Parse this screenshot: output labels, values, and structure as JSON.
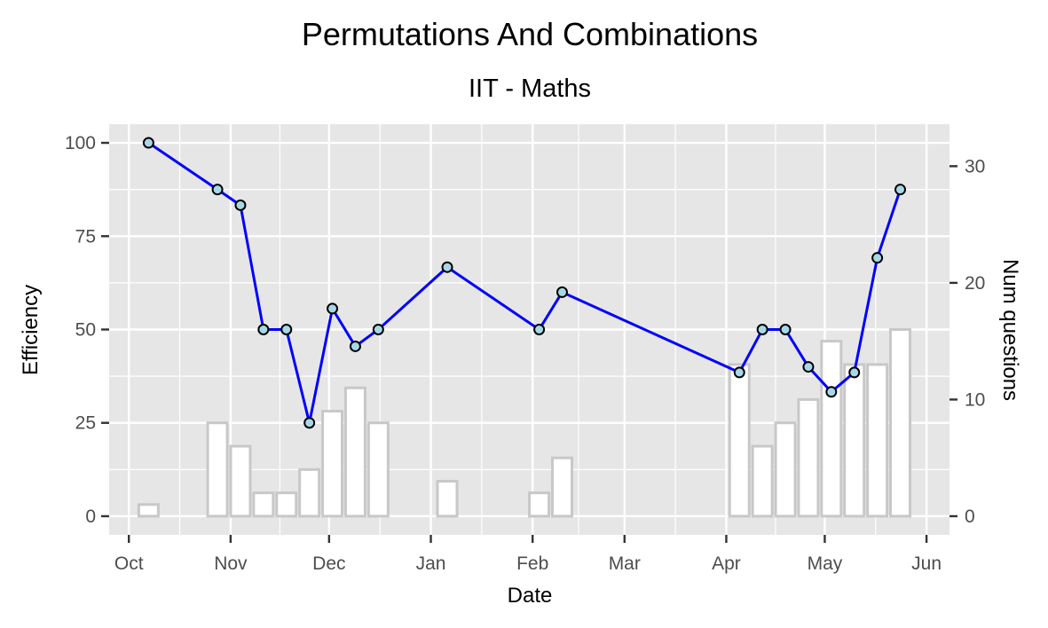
{
  "chart_data": {
    "type": "line",
    "title": "Permutations And Combinations",
    "subtitle": "IIT - Maths",
    "xlabel": "Date",
    "ylabel": "Efficiency",
    "y2label": "Num questions",
    "x_ticks": [
      "Oct",
      "Nov",
      "Dec",
      "Jan",
      "Feb",
      "Mar",
      "Apr",
      "May",
      "Jun"
    ],
    "x_tick_dates": [
      "2017-10-01",
      "2017-11-01",
      "2017-12-01",
      "2018-01-01",
      "2018-02-01",
      "2018-03-01",
      "2018-04-01",
      "2018-05-01",
      "2018-06-01"
    ],
    "y_ticks": [
      0,
      25,
      50,
      75,
      100
    ],
    "y2_ticks": [
      0,
      10,
      20,
      30
    ],
    "xlim": [
      "2017-09-25",
      "2018-06-08"
    ],
    "ylim": [
      -5,
      105
    ],
    "y2lim": [
      -1.6,
      33.6
    ],
    "grid": true,
    "colors": {
      "panel": "#e6e6e6",
      "grid": "#ffffff",
      "line": "#0000ff",
      "point_fill": "#a6d8e8",
      "point_stroke": "#000000",
      "bar_fill": "#ffffff",
      "bar_stroke": "#c8c8c8"
    },
    "series": [
      {
        "type": "line",
        "axis": "left",
        "x": [
          "2017-10-07",
          "2017-10-28",
          "2017-11-04",
          "2017-11-11",
          "2017-11-18",
          "2017-11-25",
          "2017-12-02",
          "2017-12-09",
          "2017-12-16",
          "2018-01-06",
          "2018-02-03",
          "2018-02-10",
          "2018-04-05",
          "2018-04-12",
          "2018-04-19",
          "2018-04-26",
          "2018-05-03",
          "2018-05-10",
          "2018-05-17",
          "2018-05-24"
        ],
        "values": [
          100,
          87.5,
          83.3,
          50,
          50,
          25,
          55.6,
          45.5,
          50,
          66.7,
          50,
          60,
          38.5,
          50,
          50,
          40,
          33.3,
          38.5,
          69.2,
          87.5
        ]
      },
      {
        "type": "bar",
        "axis": "right",
        "x": [
          "2017-10-07",
          "2017-10-28",
          "2017-11-04",
          "2017-11-11",
          "2017-11-18",
          "2017-11-25",
          "2017-12-02",
          "2017-12-09",
          "2017-12-16",
          "2018-01-06",
          "2018-02-03",
          "2018-02-10",
          "2018-04-05",
          "2018-04-12",
          "2018-04-19",
          "2018-04-26",
          "2018-05-03",
          "2018-05-10",
          "2018-05-17",
          "2018-05-24"
        ],
        "values": [
          1,
          8,
          6,
          2,
          2,
          4,
          9,
          11,
          8,
          3,
          2,
          5,
          13,
          6,
          8,
          10,
          15,
          13,
          13,
          16
        ]
      }
    ]
  }
}
